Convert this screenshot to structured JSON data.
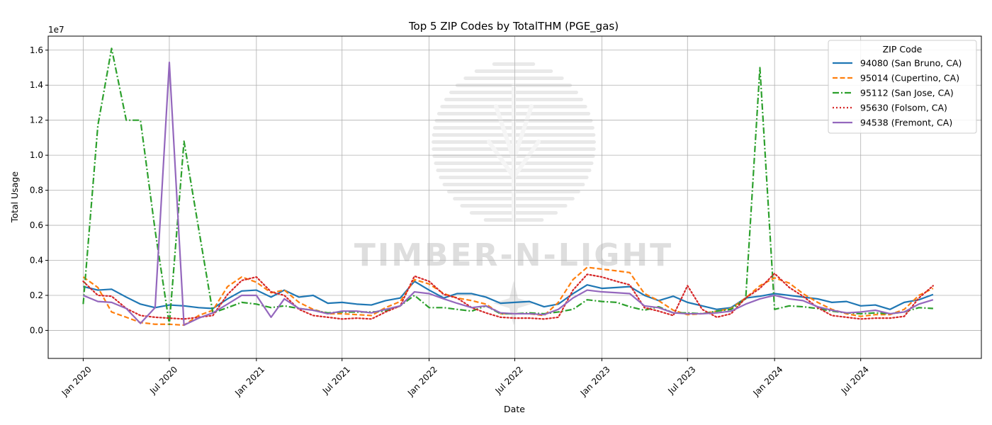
{
  "chart_data": {
    "type": "line",
    "title": "Top 5 ZIP Codes by TotalTHM (PGE_gas)",
    "xlabel": "Date",
    "ylabel": "Total Usage",
    "y_multiplier_label": "1e7",
    "y_tick_labels": [
      "0.0",
      "0.2",
      "0.4",
      "0.6",
      "0.8",
      "1.0",
      "1.2",
      "1.4",
      "1.6"
    ],
    "ylim": [
      -1600000,
      16800000
    ],
    "x_range": [
      "2019-10-19",
      "2025-03-13"
    ],
    "x_tick_dates": [
      "2020-01-01",
      "2020-07-01",
      "2021-01-01",
      "2021-07-01",
      "2022-01-01",
      "2022-07-01",
      "2023-01-01",
      "2023-07-01",
      "2024-01-01",
      "2024-07-01"
    ],
    "x_tick_labels": [
      "Jan 2020",
      "Jul 2020",
      "Jan 2021",
      "Jul 2021",
      "Jan 2022",
      "Jul 2022",
      "Jan 2023",
      "Jul 2023",
      "Jan 2024",
      "Jul 2024"
    ],
    "grid": true,
    "legend_title": "ZIP Code",
    "legend_position": "top-right",
    "watermark": "TIMBER-N-LIGHT",
    "x": [
      "2020-01-01",
      "2020-02-01",
      "2020-03-01",
      "2020-04-01",
      "2020-05-01",
      "2020-06-01",
      "2020-07-01",
      "2020-08-01",
      "2020-09-01",
      "2020-10-01",
      "2020-11-01",
      "2020-12-01",
      "2021-01-01",
      "2021-02-01",
      "2021-03-01",
      "2021-04-01",
      "2021-05-01",
      "2021-06-01",
      "2021-07-01",
      "2021-08-01",
      "2021-09-01",
      "2021-10-01",
      "2021-11-01",
      "2021-12-01",
      "2022-01-01",
      "2022-02-01",
      "2022-03-01",
      "2022-04-01",
      "2022-05-01",
      "2022-06-01",
      "2022-07-01",
      "2022-08-01",
      "2022-09-01",
      "2022-10-01",
      "2022-11-01",
      "2022-12-01",
      "2023-01-01",
      "2023-02-01",
      "2023-03-01",
      "2023-04-01",
      "2023-05-01",
      "2023-06-01",
      "2023-07-01",
      "2023-08-01",
      "2023-09-01",
      "2023-10-01",
      "2023-11-01",
      "2023-12-01",
      "2024-01-01",
      "2024-02-01",
      "2024-03-01",
      "2024-04-01",
      "2024-05-01",
      "2024-06-01",
      "2024-07-01",
      "2024-08-01",
      "2024-09-01",
      "2024-10-01",
      "2024-11-01",
      "2024-12-01"
    ],
    "series": [
      {
        "name": "94080 (San Bruno, CA)",
        "color": "#1f77b4",
        "style": "solid",
        "values": [
          2500000,
          2300000,
          2350000,
          1900000,
          1500000,
          1300000,
          1450000,
          1400000,
          1300000,
          1250000,
          1800000,
          2250000,
          2300000,
          1900000,
          2300000,
          1900000,
          2000000,
          1550000,
          1600000,
          1500000,
          1450000,
          1700000,
          1850000,
          2800000,
          2300000,
          1850000,
          2100000,
          2100000,
          1900000,
          1550000,
          1600000,
          1650000,
          1350000,
          1500000,
          2100000,
          2600000,
          2400000,
          2450000,
          2500000,
          2000000,
          1700000,
          1950000,
          1600000,
          1400000,
          1200000,
          1300000,
          1850000,
          1950000,
          2100000,
          2000000,
          1900000,
          1800000,
          1600000,
          1650000,
          1400000,
          1450000,
          1200000,
          1600000,
          1750000,
          2050000
        ]
      },
      {
        "name": "95014 (Cupertino, CA)",
        "color": "#ff7f0e",
        "style": "dashed",
        "values": [
          3050000,
          2450000,
          1050000,
          750000,
          450000,
          350000,
          350000,
          300000,
          850000,
          1150000,
          2500000,
          3050000,
          2750000,
          2150000,
          2300000,
          1600000,
          1200000,
          950000,
          950000,
          900000,
          850000,
          1300000,
          1650000,
          2900000,
          2650000,
          2100000,
          1850000,
          1700000,
          1500000,
          950000,
          950000,
          950000,
          850000,
          1600000,
          2900000,
          3600000,
          3500000,
          3400000,
          3300000,
          2100000,
          1700000,
          1150000,
          900000,
          950000,
          1100000,
          1250000,
          1850000,
          2550000,
          3000000,
          2700000,
          2100000,
          1600000,
          1200000,
          950000,
          800000,
          900000,
          900000,
          1200000,
          2000000,
          2400000
        ]
      },
      {
        "name": "95112 (San Jose, CA)",
        "color": "#2ca02c",
        "style": "dashdot",
        "values": [
          1500000,
          11700000,
          16100000,
          12000000,
          12000000,
          5700000,
          350000,
          10800000,
          5800000,
          1000000,
          1300000,
          1600000,
          1500000,
          1300000,
          1400000,
          1250000,
          1150000,
          1000000,
          1050000,
          1050000,
          1050000,
          1100000,
          1400000,
          2000000,
          1300000,
          1300000,
          1200000,
          1100000,
          1400000,
          950000,
          950000,
          1000000,
          950000,
          1050000,
          1200000,
          1750000,
          1650000,
          1600000,
          1350000,
          1150000,
          1350000,
          1000000,
          1000000,
          950000,
          1100000,
          1200000,
          1800000,
          15000000,
          1200000,
          1400000,
          1350000,
          1250000,
          1100000,
          1000000,
          950000,
          1000000,
          950000,
          1050000,
          1300000,
          1250000
        ]
      },
      {
        "name": "95630 (Folsom, CA)",
        "color": "#d62728",
        "style": "dotted",
        "values": [
          2800000,
          2000000,
          1950000,
          1250000,
          850000,
          750000,
          700000,
          650000,
          750000,
          850000,
          2050000,
          2850000,
          3050000,
          2200000,
          2000000,
          1200000,
          850000,
          750000,
          650000,
          700000,
          650000,
          1050000,
          1400000,
          3100000,
          2800000,
          2050000,
          1850000,
          1300000,
          1000000,
          750000,
          700000,
          700000,
          650000,
          750000,
          2300000,
          3200000,
          3050000,
          2800000,
          2600000,
          1300000,
          1100000,
          850000,
          2550000,
          1200000,
          750000,
          950000,
          1850000,
          2400000,
          3250000,
          2450000,
          1950000,
          1300000,
          850000,
          750000,
          650000,
          700000,
          700000,
          800000,
          1850000,
          2550000
        ]
      },
      {
        "name": "94538 (Fremont, CA)",
        "color": "#9467bd",
        "style": "solid",
        "values": [
          2000000,
          1650000,
          1600000,
          1250000,
          400000,
          1300000,
          15300000,
          300000,
          700000,
          1000000,
          1500000,
          2000000,
          2000000,
          750000,
          1800000,
          1250000,
          1150000,
          950000,
          1100000,
          1100000,
          1000000,
          1200000,
          1400000,
          2200000,
          2100000,
          1800000,
          1550000,
          1300000,
          1400000,
          1000000,
          950000,
          950000,
          900000,
          1200000,
          1850000,
          2300000,
          2200000,
          2150000,
          2100000,
          1400000,
          1300000,
          1000000,
          950000,
          950000,
          1000000,
          1100000,
          1500000,
          1800000,
          2000000,
          1800000,
          1700000,
          1350000,
          1150000,
          1000000,
          1050000,
          1150000,
          950000,
          1050000,
          1500000,
          1750000
        ]
      }
    ]
  }
}
